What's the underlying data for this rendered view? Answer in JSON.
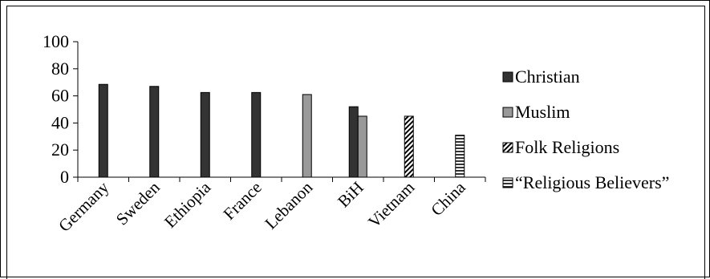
{
  "chart_data": {
    "type": "bar",
    "title": "",
    "xlabel": "",
    "ylabel": "",
    "ylim": [
      0,
      100
    ],
    "yticks": [
      0,
      20,
      40,
      60,
      80,
      100
    ],
    "grid": false,
    "legend_position": "right",
    "categories": [
      "Germany",
      "Sweden",
      "Ethiopia",
      "France",
      "Lebanon",
      "BiH",
      "Vietnam",
      "China"
    ],
    "series": [
      {
        "name": "Christian",
        "color": "#333333",
        "pattern": "solid",
        "values": [
          68.5,
          67,
          62.5,
          62.5,
          null,
          52,
          null,
          null
        ]
      },
      {
        "name": "Muslim",
        "color": "#999999",
        "pattern": "solid",
        "values": [
          null,
          null,
          null,
          null,
          61,
          45,
          null,
          null
        ]
      },
      {
        "name": "Folk Religions",
        "color": "#000000",
        "pattern": "diagonal-stripes",
        "values": [
          null,
          null,
          null,
          null,
          null,
          null,
          45,
          null
        ]
      },
      {
        "name": "“Religious Believers”",
        "color": "#000000",
        "pattern": "horizontal-stripes",
        "values": [
          null,
          null,
          null,
          null,
          null,
          null,
          null,
          31
        ]
      }
    ]
  }
}
